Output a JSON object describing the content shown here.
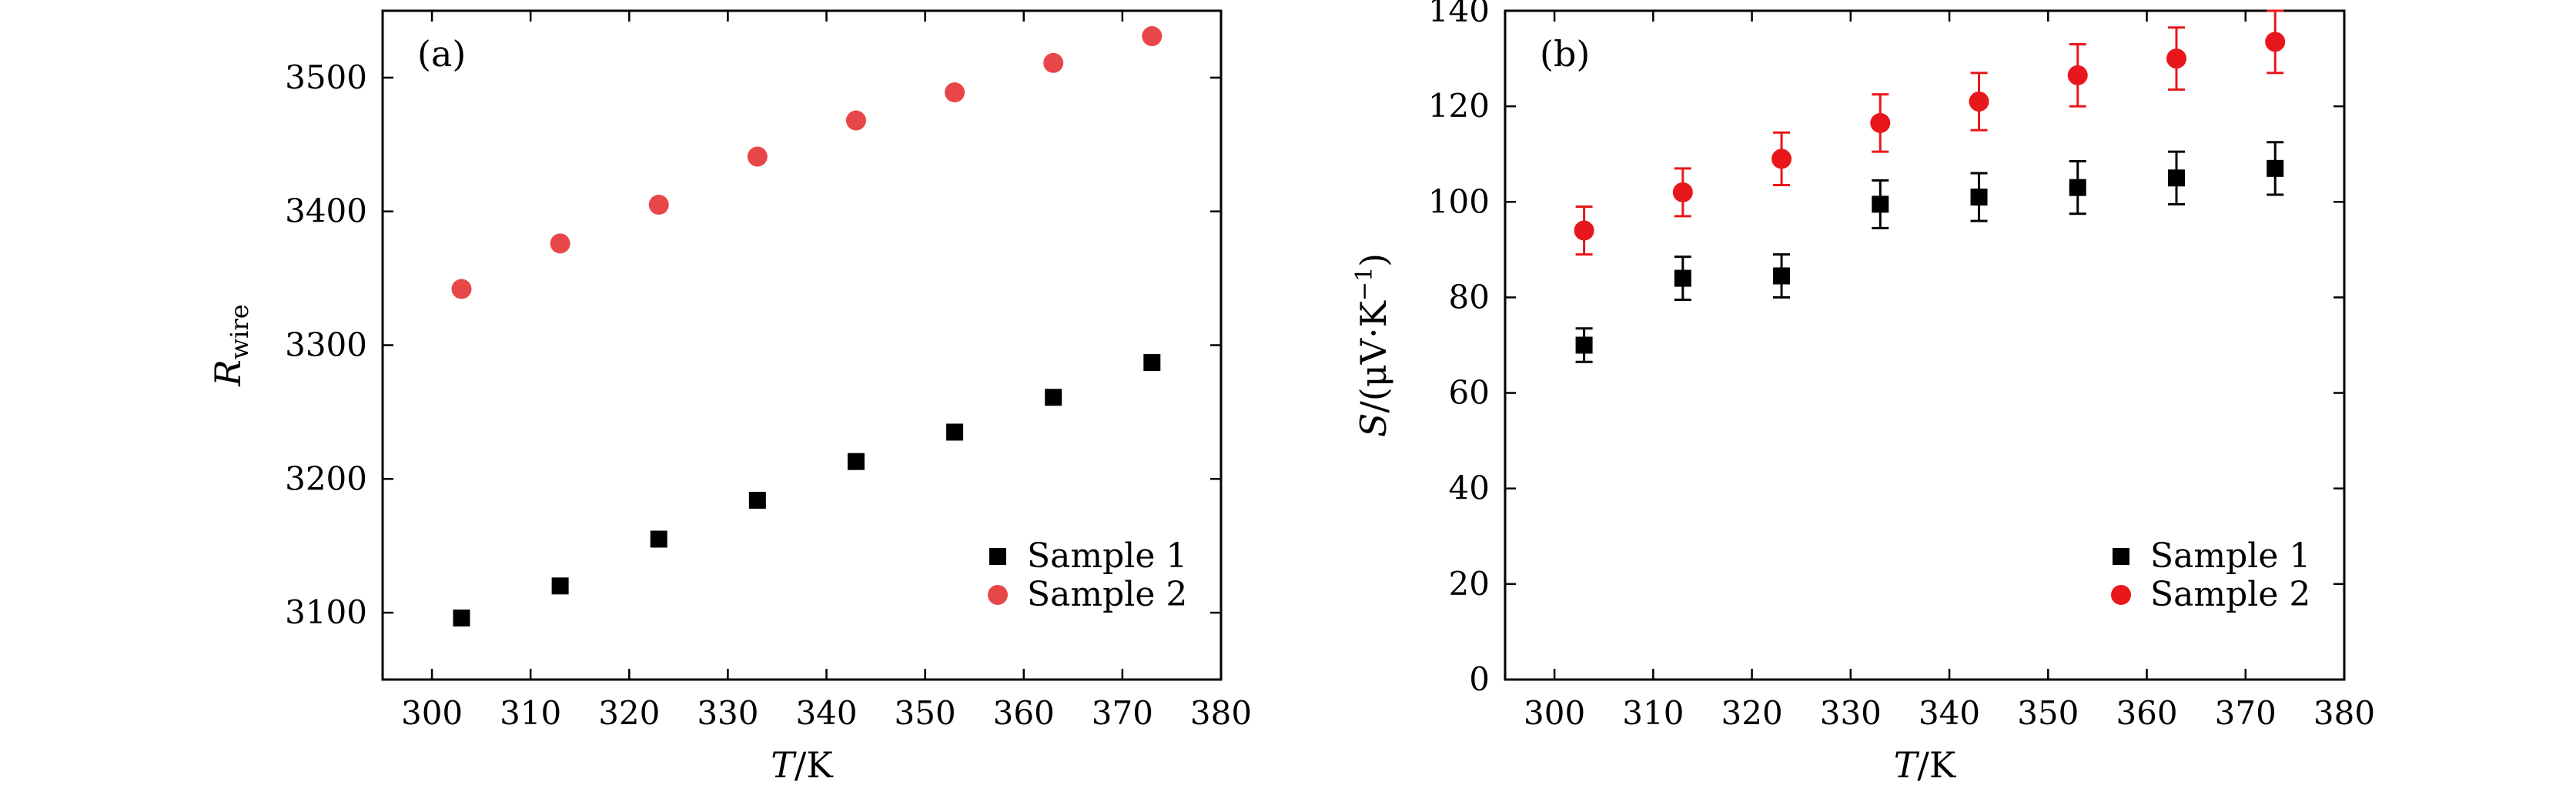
{
  "chart_data": [
    {
      "panel_label": "(a)",
      "type": "scatter",
      "xlabel": {
        "italic": "T",
        "rest": "/K"
      },
      "ylabel": {
        "italic": "R",
        "sub": "wire"
      },
      "xlim": [
        295,
        380
      ],
      "ylim": [
        3050,
        3550
      ],
      "xticks": [
        300,
        310,
        320,
        330,
        340,
        350,
        360,
        370,
        380
      ],
      "yticks": [
        3100,
        3200,
        3300,
        3400,
        3500
      ],
      "legend_position": "bottom-right",
      "series": [
        {
          "name": "Sample 1",
          "marker": "square",
          "color": "#000000",
          "x": [
            303,
            313,
            323,
            333,
            343,
            353,
            363,
            373
          ],
          "y": [
            3096,
            3120,
            3155,
            3184,
            3213,
            3235,
            3261,
            3287
          ]
        },
        {
          "name": "Sample 2",
          "marker": "circle",
          "color": "#e8474a",
          "x": [
            303,
            313,
            323,
            333,
            343,
            353,
            363,
            373
          ],
          "y": [
            3342,
            3376,
            3405,
            3441,
            3468,
            3489,
            3511,
            3531
          ]
        }
      ]
    },
    {
      "panel_label": "(b)",
      "type": "scatter",
      "xlabel": {
        "italic": "T",
        "rest": "/K"
      },
      "ylabel": {
        "italic": "S",
        "rest": "/(μV·K",
        "sup": "−1",
        "close": ")"
      },
      "xlim": [
        295,
        380
      ],
      "ylim": [
        0,
        140
      ],
      "xticks": [
        300,
        310,
        320,
        330,
        340,
        350,
        360,
        370,
        380
      ],
      "yticks": [
        0,
        20,
        40,
        60,
        80,
        100,
        120,
        140
      ],
      "legend_position": "bottom-right",
      "series": [
        {
          "name": "Sample 1",
          "marker": "square",
          "color": "#000000",
          "x": [
            303,
            313,
            323,
            333,
            343,
            353,
            363,
            373
          ],
          "y": [
            70,
            84,
            84.5,
            99.5,
            101,
            103,
            105,
            107
          ],
          "err": [
            3.5,
            4.5,
            4.5,
            5,
            5,
            5.5,
            5.5,
            5.5
          ]
        },
        {
          "name": "Sample 2",
          "marker": "circle",
          "color": "#e8171b",
          "x": [
            303,
            313,
            323,
            333,
            343,
            353,
            363,
            373
          ],
          "y": [
            94,
            102,
            109,
            116.5,
            121,
            126.5,
            130,
            133.5
          ],
          "err": [
            5,
            5,
            5.5,
            6,
            6,
            6.5,
            6.5,
            6.5
          ]
        }
      ]
    }
  ]
}
